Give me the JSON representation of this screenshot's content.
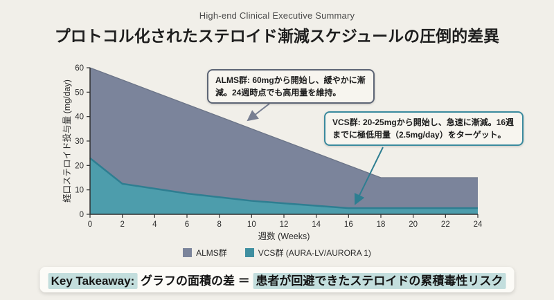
{
  "header": {
    "eyebrow": "High-end Clinical Executive Summary",
    "title": "プロトコル化されたステロイド漸減スケジュールの圧倒的差異"
  },
  "chart_data": {
    "type": "area",
    "x": [
      0,
      2,
      4,
      6,
      8,
      10,
      12,
      14,
      16,
      18,
      20,
      22,
      24
    ],
    "series": [
      {
        "name": "ALMS群",
        "values": [
          60,
          55,
          50,
          45,
          40,
          35,
          30,
          25,
          20,
          15,
          15,
          15,
          15
        ],
        "fill": "#7b849b",
        "stroke": "#6b7487"
      },
      {
        "name": "VCS群 (AURA-LV/AURORA 1)",
        "values": [
          23,
          12.5,
          10.5,
          8.5,
          7,
          5.5,
          4.5,
          3.5,
          2.5,
          2.5,
          2.5,
          2.5,
          2.5
        ],
        "fill": "#4d9dac",
        "stroke": "#2e7e91"
      }
    ],
    "title": "プロトコル化されたステロイド漸減スケジュールの圧倒的差異",
    "xlabel": "週数 (Weeks)",
    "ylabel": "経口ステロイド投与量 (mg/day)",
    "xlim": [
      0,
      24
    ],
    "ylim": [
      0,
      60
    ],
    "xticks": [
      0,
      2,
      4,
      6,
      8,
      10,
      12,
      14,
      16,
      18,
      20,
      22,
      24
    ],
    "yticks": [
      0,
      10,
      20,
      30,
      40,
      50,
      60
    ],
    "grid": false,
    "legend_position": "bottom"
  },
  "annotations": {
    "alms": {
      "text": "ALMS群: 60mgから開始し、緩やかに漸減。24週時点でも高用量を維持。"
    },
    "vcs": {
      "text": "VCS群: 20-25mgから開始し、急速に漸減。16週までに極低用量（2.5mg/day）をターゲット。"
    }
  },
  "legend": {
    "items": [
      {
        "label": "ALMS群",
        "color": "#7b849b"
      },
      {
        "label": "VCS群 (AURA-LV/AURORA 1)",
        "color": "#3f8fa0"
      }
    ]
  },
  "takeaway": {
    "prefix": "Key Takeaway:",
    "middle": " グラフの面積の差 ＝ ",
    "highlight": "患者が回避できたステロイドの累積毒性リスク",
    "highlight_color": "#c3dedd"
  },
  "colors": {
    "background": "#f1efe9",
    "axis": "#2f2f2f",
    "alms_area": "#7b849b",
    "vcs_area": "#4d9dac",
    "alms_arrow": "#787f92",
    "vcs_arrow": "#2e7e91"
  }
}
